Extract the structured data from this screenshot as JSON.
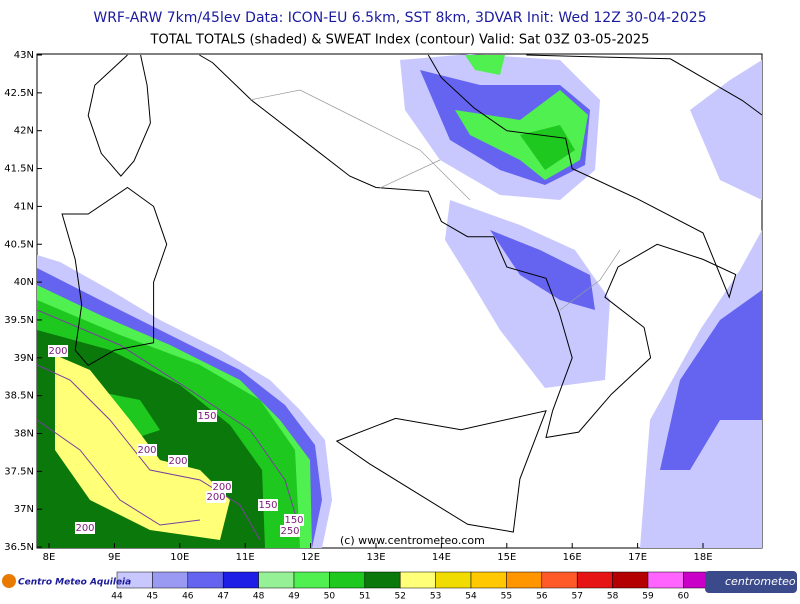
{
  "header": {
    "line1": "WRF-ARW 7km/45lev   Data: ICON-EU 6.5km, SST 8km, 3DVAR   Init: Wed 12Z 30-04-2025",
    "line2": "TOTAL TOTALS (shaded) & SWEAT Index (contour)   Valid: Sat 03Z 03-05-2025"
  },
  "map": {
    "lat_labels": [
      "43N",
      "42.5N",
      "42N",
      "41.5N",
      "41N",
      "40.5N",
      "40N",
      "39.5N",
      "39N",
      "38.5N",
      "38N",
      "37.5N",
      "37N",
      "36.5N"
    ],
    "lon_labels": [
      "8E",
      "9E",
      "10E",
      "11E",
      "12E",
      "13E",
      "14E",
      "15E",
      "16E",
      "17E",
      "18E"
    ],
    "contour_labels": [
      "200",
      "150",
      "200",
      "200",
      "200",
      "200",
      "150",
      "150",
      "250",
      "200"
    ],
    "watermark": "(c) www.centrometeo.com"
  },
  "colorbar": {
    "levels": [
      44,
      45,
      46,
      47,
      48,
      49,
      50,
      51,
      52,
      53,
      54,
      55,
      56,
      57,
      58,
      59,
      60
    ],
    "colors": [
      "#c8c8ff",
      "#9a9af2",
      "#6464f0",
      "#1e1ee6",
      "#96f096",
      "#50f050",
      "#1ec81e",
      "#0a780a",
      "#ffff78",
      "#f0dc00",
      "#ffc800",
      "#ff9600",
      "#ff5a28",
      "#e61414",
      "#b40000",
      "#ff64ff",
      "#c800c8"
    ]
  },
  "logos": {
    "left": "Centro Meteo Aquileia",
    "right": "centrometeo"
  }
}
